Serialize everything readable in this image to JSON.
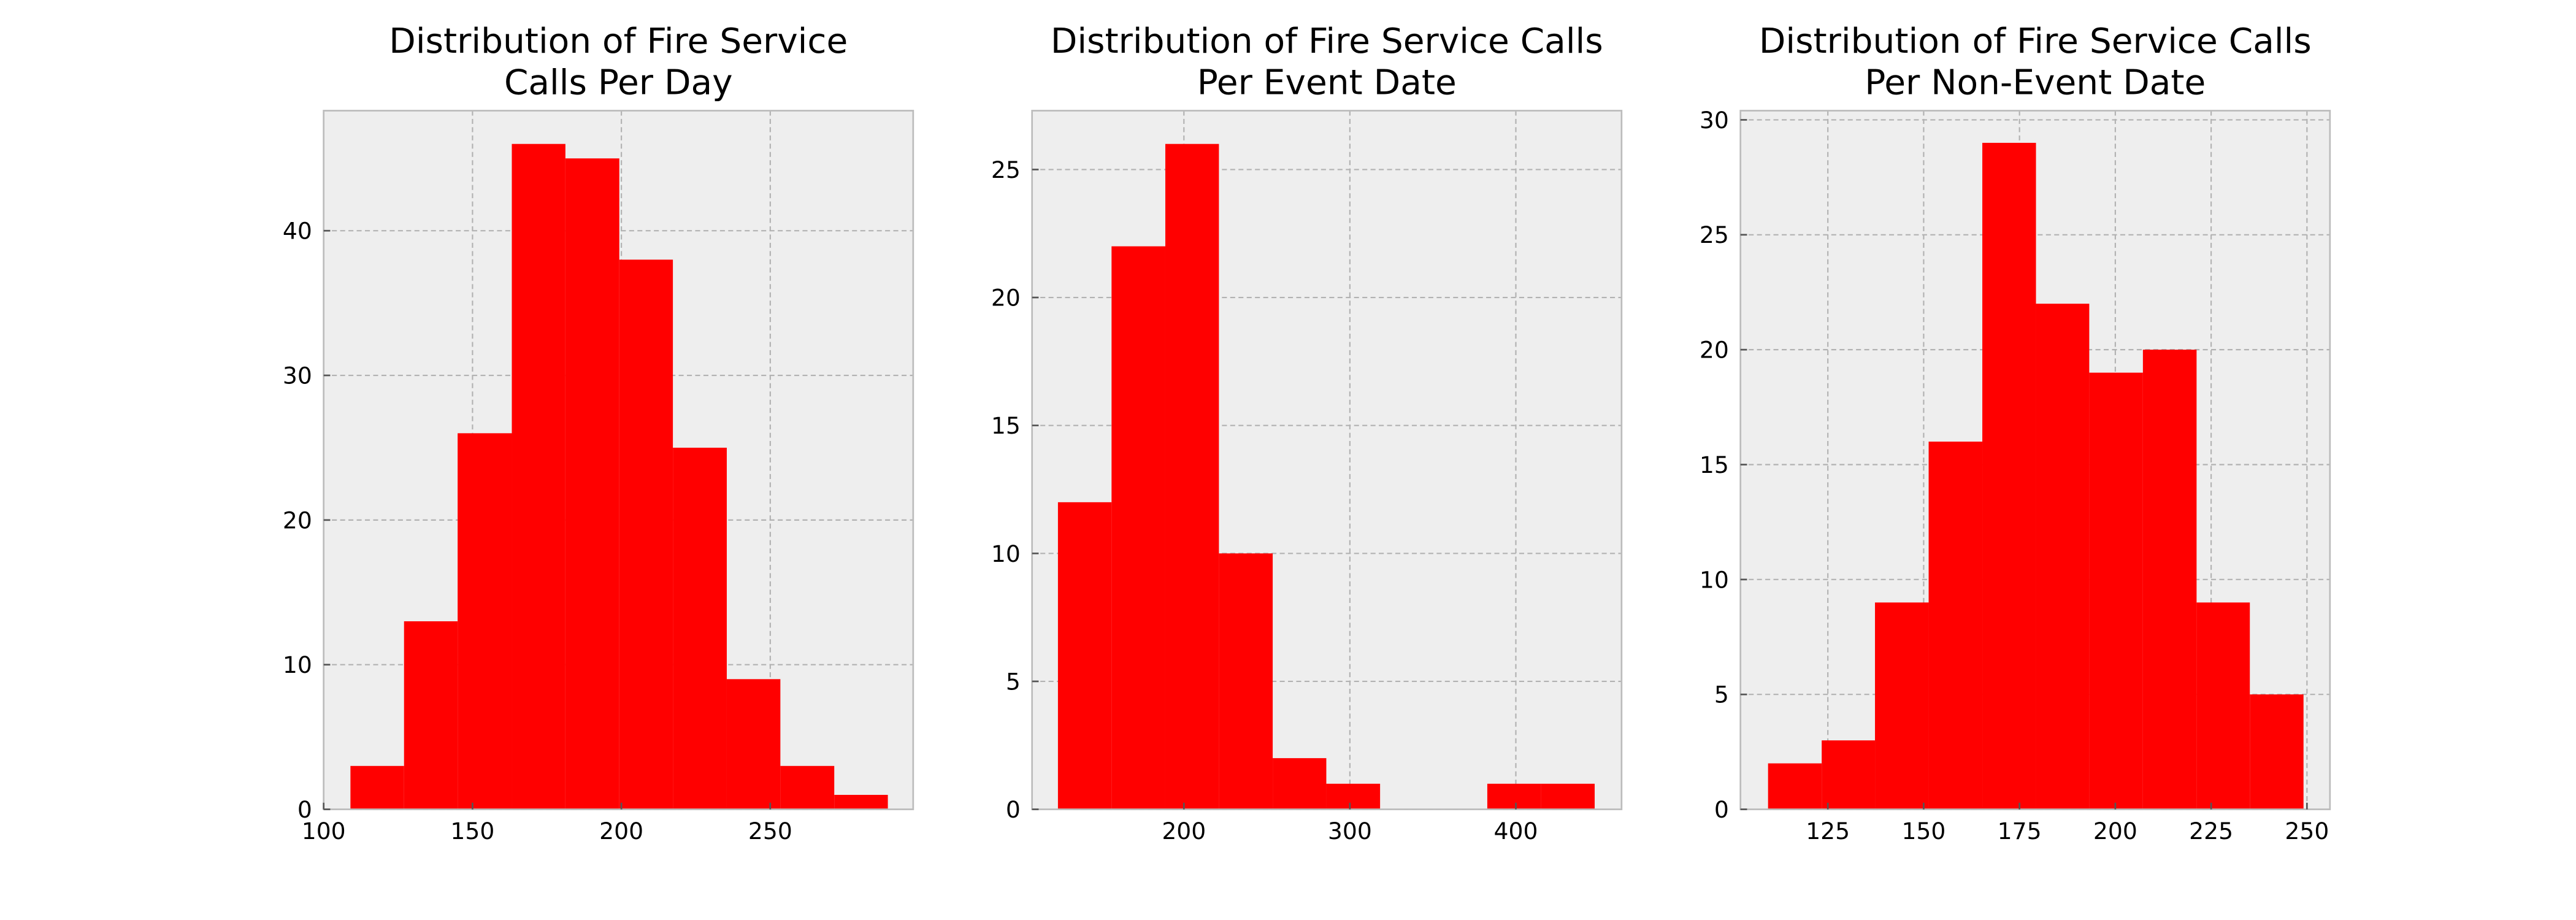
{
  "chart_data": [
    {
      "type": "histogram",
      "title": "Distribution of Fire Service\nCalls Per Day",
      "bins": [
        109,
        127,
        145,
        163.2,
        181.2,
        199.3,
        217.3,
        235.4,
        253.4,
        271.5,
        289.5
      ],
      "values": [
        3,
        13,
        26,
        46,
        45,
        38,
        25,
        9,
        3,
        1
      ],
      "color": "#ff0000",
      "xlim": [
        100,
        298
      ],
      "ylim": [
        0,
        48.3
      ],
      "xticks": [
        100,
        150,
        200,
        250
      ],
      "yticks": [
        0,
        10,
        20,
        30,
        40
      ],
      "grid": true
    },
    {
      "type": "histogram",
      "title": "Distribution of Fire Service Calls\nPer Event Date",
      "bins": [
        124.1,
        156.4,
        188.8,
        221.1,
        253.5,
        285.8,
        318.2,
        350.5,
        382.8,
        415.2,
        447.5
      ],
      "values": [
        12,
        22,
        26,
        10,
        2,
        1,
        0,
        0,
        1,
        1
      ],
      "color": "#ff0000",
      "xlim": [
        108.5,
        463.7
      ],
      "ylim": [
        0,
        27.3
      ],
      "xticks": [
        200,
        300,
        400
      ],
      "yticks": [
        0,
        5,
        10,
        15,
        20,
        25
      ],
      "grid": true
    },
    {
      "type": "histogram",
      "title": "Distribution of Fire Service Calls\nPer Non-Event Date",
      "bins": [
        109.4,
        123.4,
        137.3,
        151.3,
        165.3,
        179.3,
        193.2,
        207.2,
        221.2,
        235.1,
        249.1
      ],
      "values": [
        2,
        3,
        9,
        16,
        29,
        22,
        19,
        20,
        9,
        5
      ],
      "color": "#ff0000",
      "xlim": [
        102.2,
        256
      ],
      "ylim": [
        0,
        30.4
      ],
      "xticks": [
        125,
        150,
        175,
        200,
        225,
        250
      ],
      "yticks": [
        0,
        5,
        10,
        15,
        20,
        25,
        30
      ],
      "grid": true
    }
  ]
}
